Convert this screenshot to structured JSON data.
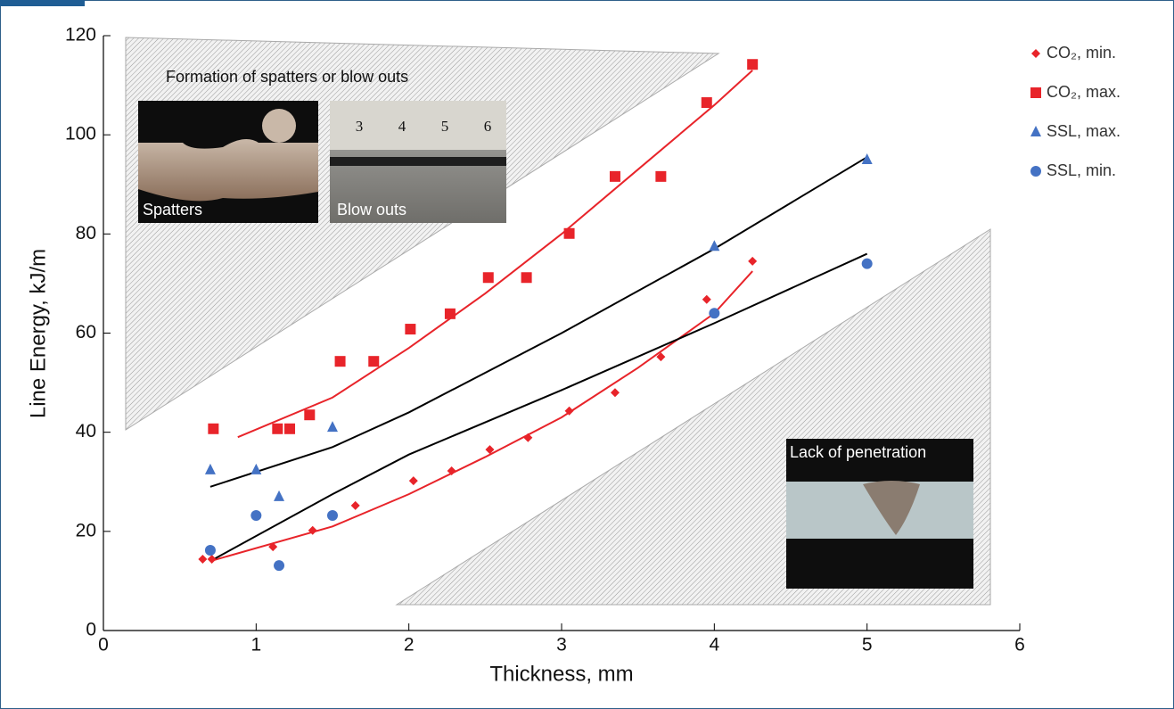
{
  "chart_data": {
    "type": "scatter",
    "xlabel": "Thickness, mm",
    "ylabel": "Line Energy, kJ/m",
    "xlim": [
      0,
      6
    ],
    "xticks": [
      0,
      1,
      2,
      3,
      4,
      5,
      6
    ],
    "ylim": [
      0,
      120
    ],
    "yticks": [
      0,
      20,
      40,
      60,
      80,
      100,
      120
    ],
    "legend": "right",
    "annotations": [
      "Formation of spatters or blow outs",
      "Spatters",
      "Blow outs",
      "Lack of penetration"
    ],
    "ruler_labels": [
      "3",
      "4",
      "5",
      "6"
    ],
    "series": [
      {
        "name": "CO₂, min.",
        "color": "#e8242a",
        "marker": "diamond",
        "x": [
          0.65,
          0.71,
          1.11,
          1.37,
          1.65,
          2.03,
          2.28,
          2.53,
          2.78,
          3.05,
          3.35,
          3.65,
          3.95,
          4.25
        ],
        "values": [
          14.4,
          14.4,
          16.9,
          20.2,
          25.2,
          30.2,
          32.2,
          36.5,
          38.9,
          44.3,
          48.0,
          55.2,
          66.8,
          74.5
        ]
      },
      {
        "name": "CO₂, max.",
        "color": "#e8242a",
        "marker": "square",
        "x": [
          0.72,
          1.14,
          1.22,
          1.35,
          1.55,
          1.77,
          2.01,
          2.27,
          2.52,
          2.77,
          3.05,
          3.35,
          3.65,
          3.95,
          4.25
        ],
        "values": [
          40.7,
          40.7,
          40.7,
          43.5,
          54.3,
          54.3,
          60.8,
          63.9,
          71.2,
          71.2,
          80.1,
          91.6,
          91.6,
          106.5,
          114.2
        ]
      },
      {
        "name": "SSL, max.",
        "color": "#4472c4",
        "marker": "triangle",
        "x": [
          0.7,
          1.0,
          1.15,
          1.5,
          4.0,
          5.0
        ],
        "values": [
          32.4,
          32.4,
          27.0,
          41.0,
          77.5,
          95.0
        ]
      },
      {
        "name": "SSL, min.",
        "color": "#4472c4",
        "marker": "circle",
        "x": [
          0.7,
          1.0,
          1.15,
          1.5,
          4.0,
          5.0
        ],
        "values": [
          16.2,
          23.2,
          13.1,
          23.2,
          64.0,
          74.0
        ]
      }
    ],
    "fits": [
      {
        "color": "#e8242a",
        "x": [
          0.88,
          1.5,
          2,
          2.5,
          3,
          3.5,
          4,
          4.25
        ],
        "values": [
          39,
          47,
          57,
          68,
          80,
          93,
          106,
          113
        ]
      },
      {
        "color": "#e8242a",
        "x": [
          0.7,
          1.5,
          2,
          2.5,
          3,
          3.5,
          4,
          4.25
        ],
        "values": [
          14,
          21,
          27.5,
          35,
          43,
          53,
          64,
          72.5
        ]
      },
      {
        "color": "#000000",
        "x": [
          0.7,
          1.5,
          2,
          3,
          4,
          5
        ],
        "values": [
          29,
          37,
          44,
          60,
          77,
          95.5
        ]
      },
      {
        "color": "#000000",
        "x": [
          0.7,
          1.5,
          2,
          3,
          4,
          5
        ],
        "values": [
          14,
          27.5,
          35.5,
          48.5,
          62,
          76
        ]
      }
    ]
  }
}
